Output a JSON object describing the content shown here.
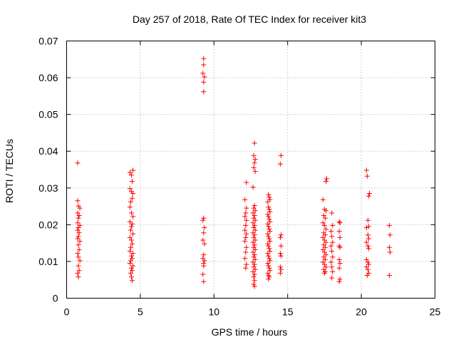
{
  "chart_data": {
    "type": "scatter",
    "title": "Day 257 of 2018, Rate Of TEC Index for receiver kit3",
    "xlabel": "GPS time / hours",
    "ylabel": "ROTI / TECUs",
    "xlim": [
      0,
      25
    ],
    "ylim": [
      0,
      0.07
    ],
    "xticks": [
      "0",
      "5",
      "10",
      "15",
      "20",
      "25"
    ],
    "yticks": [
      "0",
      "0.01",
      "0.02",
      "0.03",
      "0.04",
      "0.05",
      "0.06",
      "0.07"
    ],
    "grid": true,
    "marker": "+",
    "color": "#ff0000",
    "series": [
      {
        "name": "kit3",
        "points": [
          [
            0.75,
            0.0368
          ],
          [
            0.75,
            0.0265
          ],
          [
            0.8,
            0.0251
          ],
          [
            0.9,
            0.0245
          ],
          [
            0.75,
            0.0232
          ],
          [
            0.85,
            0.0225
          ],
          [
            0.8,
            0.0218
          ],
          [
            0.75,
            0.0205
          ],
          [
            0.9,
            0.0198
          ],
          [
            0.8,
            0.0192
          ],
          [
            0.75,
            0.0185
          ],
          [
            0.85,
            0.0178
          ],
          [
            0.8,
            0.0168
          ],
          [
            0.75,
            0.0162
          ],
          [
            0.9,
            0.0155
          ],
          [
            0.8,
            0.0145
          ],
          [
            0.85,
            0.0132
          ],
          [
            0.75,
            0.0122
          ],
          [
            0.8,
            0.0112
          ],
          [
            0.9,
            0.0102
          ],
          [
            0.8,
            0.0088
          ],
          [
            0.85,
            0.0075
          ],
          [
            0.75,
            0.0068
          ],
          [
            0.8,
            0.0058
          ],
          [
            4.3,
            0.0342
          ],
          [
            4.4,
            0.0335
          ],
          [
            4.5,
            0.0348
          ],
          [
            4.45,
            0.0318
          ],
          [
            4.3,
            0.0298
          ],
          [
            4.4,
            0.029
          ],
          [
            4.5,
            0.0285
          ],
          [
            4.45,
            0.0272
          ],
          [
            4.35,
            0.0262
          ],
          [
            4.3,
            0.0248
          ],
          [
            4.4,
            0.0232
          ],
          [
            4.5,
            0.0222
          ],
          [
            4.3,
            0.0208
          ],
          [
            4.45,
            0.0202
          ],
          [
            4.4,
            0.0195
          ],
          [
            4.35,
            0.0185
          ],
          [
            4.5,
            0.0175
          ],
          [
            4.3,
            0.0165
          ],
          [
            4.4,
            0.0158
          ],
          [
            4.45,
            0.0148
          ],
          [
            4.35,
            0.0138
          ],
          [
            4.3,
            0.0128
          ],
          [
            4.5,
            0.0122
          ],
          [
            4.4,
            0.0115
          ],
          [
            4.45,
            0.0108
          ],
          [
            4.35,
            0.0102
          ],
          [
            4.3,
            0.0095
          ],
          [
            4.5,
            0.0088
          ],
          [
            4.4,
            0.0082
          ],
          [
            4.45,
            0.0075
          ],
          [
            4.35,
            0.0068
          ],
          [
            4.4,
            0.0058
          ],
          [
            4.45,
            0.0048
          ],
          [
            9.3,
            0.0652
          ],
          [
            9.3,
            0.0635
          ],
          [
            9.25,
            0.0612
          ],
          [
            9.35,
            0.0602
          ],
          [
            9.3,
            0.0588
          ],
          [
            9.3,
            0.0562
          ],
          [
            9.3,
            0.0218
          ],
          [
            9.25,
            0.0212
          ],
          [
            9.35,
            0.0192
          ],
          [
            9.3,
            0.0178
          ],
          [
            9.25,
            0.0158
          ],
          [
            9.35,
            0.0148
          ],
          [
            9.3,
            0.0118
          ],
          [
            9.25,
            0.0108
          ],
          [
            9.35,
            0.0102
          ],
          [
            9.3,
            0.0095
          ],
          [
            9.3,
            0.0088
          ],
          [
            9.25,
            0.0065
          ],
          [
            9.3,
            0.0045
          ],
          [
            12.2,
            0.0315
          ],
          [
            12.1,
            0.0268
          ],
          [
            12.2,
            0.0245
          ],
          [
            12.15,
            0.0232
          ],
          [
            12.1,
            0.0222
          ],
          [
            12.2,
            0.0212
          ],
          [
            12.15,
            0.0198
          ],
          [
            12.1,
            0.0185
          ],
          [
            12.2,
            0.0175
          ],
          [
            12.15,
            0.0165
          ],
          [
            12.1,
            0.0155
          ],
          [
            12.2,
            0.0138
          ],
          [
            12.15,
            0.0125
          ],
          [
            12.1,
            0.0108
          ],
          [
            12.2,
            0.0092
          ],
          [
            12.15,
            0.0082
          ],
          [
            12.75,
            0.0422
          ],
          [
            12.7,
            0.0388
          ],
          [
            12.8,
            0.0378
          ],
          [
            12.75,
            0.0368
          ],
          [
            12.7,
            0.0355
          ],
          [
            12.8,
            0.0345
          ],
          [
            12.65,
            0.0302
          ],
          [
            12.75,
            0.0252
          ],
          [
            12.7,
            0.0245
          ],
          [
            12.8,
            0.0238
          ],
          [
            12.65,
            0.0232
          ],
          [
            12.75,
            0.0225
          ],
          [
            12.7,
            0.0218
          ],
          [
            12.8,
            0.0212
          ],
          [
            12.65,
            0.0205
          ],
          [
            12.75,
            0.0198
          ],
          [
            12.7,
            0.0192
          ],
          [
            12.8,
            0.0185
          ],
          [
            12.65,
            0.0178
          ],
          [
            12.75,
            0.0172
          ],
          [
            12.7,
            0.0165
          ],
          [
            12.8,
            0.0158
          ],
          [
            12.65,
            0.0152
          ],
          [
            12.75,
            0.0145
          ],
          [
            12.7,
            0.0138
          ],
          [
            12.8,
            0.0132
          ],
          [
            12.65,
            0.0125
          ],
          [
            12.75,
            0.0118
          ],
          [
            12.7,
            0.0112
          ],
          [
            12.8,
            0.0105
          ],
          [
            12.65,
            0.0098
          ],
          [
            12.75,
            0.0092
          ],
          [
            12.7,
            0.0085
          ],
          [
            12.8,
            0.0078
          ],
          [
            12.65,
            0.0072
          ],
          [
            12.75,
            0.0065
          ],
          [
            12.7,
            0.0058
          ],
          [
            12.75,
            0.0048
          ],
          [
            12.7,
            0.0038
          ],
          [
            12.75,
            0.0032
          ],
          [
            13.7,
            0.0282
          ],
          [
            13.75,
            0.0275
          ],
          [
            13.8,
            0.0268
          ],
          [
            13.65,
            0.0262
          ],
          [
            13.7,
            0.0248
          ],
          [
            13.75,
            0.0242
          ],
          [
            13.8,
            0.0235
          ],
          [
            13.65,
            0.0228
          ],
          [
            13.7,
            0.0222
          ],
          [
            13.75,
            0.0215
          ],
          [
            13.8,
            0.0208
          ],
          [
            13.65,
            0.0202
          ],
          [
            13.7,
            0.0195
          ],
          [
            13.75,
            0.0188
          ],
          [
            13.8,
            0.0182
          ],
          [
            13.65,
            0.0175
          ],
          [
            13.7,
            0.0168
          ],
          [
            13.75,
            0.0162
          ],
          [
            13.8,
            0.0155
          ],
          [
            13.65,
            0.0148
          ],
          [
            13.7,
            0.0142
          ],
          [
            13.75,
            0.0135
          ],
          [
            13.8,
            0.0128
          ],
          [
            13.65,
            0.0122
          ],
          [
            13.7,
            0.0115
          ],
          [
            13.75,
            0.0108
          ],
          [
            13.8,
            0.0102
          ],
          [
            13.65,
            0.0095
          ],
          [
            13.7,
            0.0088
          ],
          [
            13.75,
            0.0082
          ],
          [
            13.8,
            0.0075
          ],
          [
            13.65,
            0.0068
          ],
          [
            13.7,
            0.0062
          ],
          [
            13.75,
            0.0058
          ],
          [
            13.7,
            0.0052
          ],
          [
            14.55,
            0.0388
          ],
          [
            14.5,
            0.0365
          ],
          [
            14.55,
            0.0172
          ],
          [
            14.5,
            0.0165
          ],
          [
            14.55,
            0.0142
          ],
          [
            14.5,
            0.0122
          ],
          [
            14.55,
            0.0115
          ],
          [
            14.5,
            0.0085
          ],
          [
            14.55,
            0.0078
          ],
          [
            14.5,
            0.0068
          ],
          [
            17.4,
            0.0268
          ],
          [
            17.5,
            0.0242
          ],
          [
            17.6,
            0.0238
          ],
          [
            17.45,
            0.0225
          ],
          [
            17.55,
            0.0218
          ],
          [
            17.4,
            0.0205
          ],
          [
            17.5,
            0.0198
          ],
          [
            17.6,
            0.0188
          ],
          [
            17.45,
            0.0178
          ],
          [
            17.55,
            0.0172
          ],
          [
            17.4,
            0.0165
          ],
          [
            17.5,
            0.0158
          ],
          [
            17.6,
            0.0152
          ],
          [
            17.45,
            0.0145
          ],
          [
            17.55,
            0.0138
          ],
          [
            17.4,
            0.0132
          ],
          [
            17.5,
            0.0125
          ],
          [
            17.6,
            0.0118
          ],
          [
            17.45,
            0.0112
          ],
          [
            17.55,
            0.0105
          ],
          [
            17.4,
            0.0098
          ],
          [
            17.5,
            0.0092
          ],
          [
            17.6,
            0.0085
          ],
          [
            17.45,
            0.0078
          ],
          [
            17.55,
            0.0072
          ],
          [
            17.5,
            0.0068
          ],
          [
            17.65,
            0.0325
          ],
          [
            17.6,
            0.0318
          ],
          [
            18.0,
            0.0232
          ],
          [
            18.05,
            0.0198
          ],
          [
            17.95,
            0.0182
          ],
          [
            18.0,
            0.0168
          ],
          [
            18.05,
            0.0152
          ],
          [
            17.95,
            0.0142
          ],
          [
            18.0,
            0.0128
          ],
          [
            18.05,
            0.0112
          ],
          [
            17.95,
            0.0098
          ],
          [
            18.0,
            0.0085
          ],
          [
            18.05,
            0.0072
          ],
          [
            18.0,
            0.0055
          ],
          [
            18.5,
            0.0208
          ],
          [
            18.55,
            0.0205
          ],
          [
            18.5,
            0.0182
          ],
          [
            18.55,
            0.0165
          ],
          [
            18.5,
            0.0142
          ],
          [
            18.55,
            0.0138
          ],
          [
            18.5,
            0.0105
          ],
          [
            18.55,
            0.0095
          ],
          [
            18.5,
            0.0082
          ],
          [
            18.55,
            0.0052
          ],
          [
            18.5,
            0.0045
          ],
          [
            20.35,
            0.0348
          ],
          [
            20.4,
            0.0332
          ],
          [
            20.55,
            0.0285
          ],
          [
            20.5,
            0.0278
          ],
          [
            20.45,
            0.0212
          ],
          [
            20.5,
            0.0195
          ],
          [
            20.35,
            0.0192
          ],
          [
            20.45,
            0.0172
          ],
          [
            20.5,
            0.0162
          ],
          [
            20.35,
            0.0152
          ],
          [
            20.45,
            0.0142
          ],
          [
            20.5,
            0.0135
          ],
          [
            20.35,
            0.0105
          ],
          [
            20.45,
            0.0098
          ],
          [
            20.5,
            0.0092
          ],
          [
            20.35,
            0.0085
          ],
          [
            20.45,
            0.0078
          ],
          [
            20.5,
            0.0068
          ],
          [
            20.4,
            0.0062
          ],
          [
            21.9,
            0.0198
          ],
          [
            21.95,
            0.0172
          ],
          [
            21.9,
            0.0138
          ],
          [
            21.95,
            0.0125
          ],
          [
            21.9,
            0.0062
          ]
        ]
      }
    ]
  }
}
